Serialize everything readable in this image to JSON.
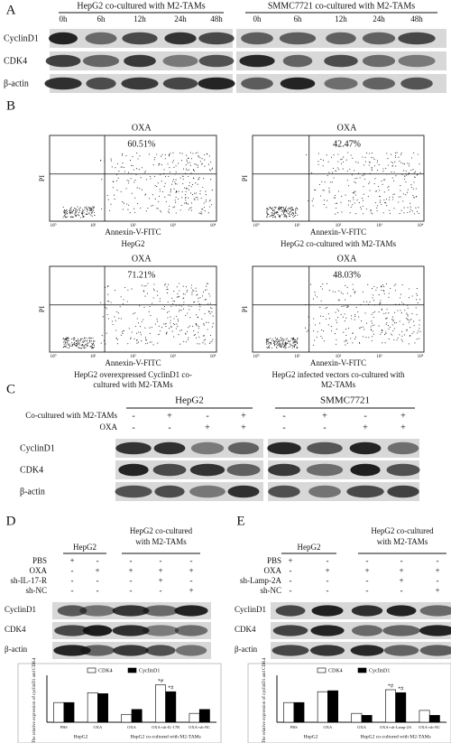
{
  "panel_a": {
    "label": "A",
    "groups": [
      {
        "title": "HepG2 co-cultured with M2-TAMs",
        "times": [
          "0h",
          "6h",
          "12h",
          "24h",
          "48h"
        ]
      },
      {
        "title": "SMMC7721 co-cultured with M2-TAMs",
        "times": [
          "0h",
          "6h",
          "12h",
          "24h",
          "48h"
        ]
      }
    ],
    "rows": [
      "CyclinD1",
      "CDK4",
      "β-actin"
    ]
  },
  "panel_b": {
    "label": "B",
    "x_label": "Annexin-V-FITC",
    "y_label": "PI",
    "ticks": [
      "10⁰",
      "10¹",
      "10²",
      "10³",
      "10⁴"
    ],
    "plots": [
      {
        "treatment": "OXA",
        "percent": "60.51%",
        "caption": [
          "HepG2"
        ]
      },
      {
        "treatment": "OXA",
        "percent": "42.47%",
        "caption": [
          "HepG2 co-cultured with M2-TAMs"
        ]
      },
      {
        "treatment": "OXA",
        "percent": "71.21%",
        "caption": [
          "HepG2 overexpressed CyclinD1 co-",
          "cultured with M2-TAMs"
        ]
      },
      {
        "treatment": "OXA",
        "percent": "48.03%",
        "caption": [
          "HepG2 infected vectors co-cultured with",
          "M2-TAMs"
        ]
      }
    ]
  },
  "panel_c": {
    "label": "C",
    "groups": [
      "HepG2",
      "SMMC7721"
    ],
    "conditions": [
      {
        "label": "Co-cultured with M2-TAMs",
        "marks": [
          "-",
          "+",
          "-",
          "+",
          "-",
          "+",
          "-",
          "+"
        ]
      },
      {
        "label": "OXA",
        "marks": [
          "-",
          "-",
          "+",
          "+",
          "-",
          "-",
          "+",
          "+"
        ]
      }
    ],
    "rows": [
      "CyclinD1",
      "CDK4",
      "β-actin"
    ]
  },
  "panel_d": {
    "label": "D",
    "groups": [
      {
        "lines": [
          "HepG2"
        ]
      },
      {
        "lines": [
          "HepG2 co-cultured",
          "with M2-TAMs"
        ]
      }
    ],
    "treatments": [
      {
        "label": "PBS",
        "marks": [
          "+",
          "-",
          "-",
          "-",
          "-"
        ]
      },
      {
        "label": "OXA",
        "marks": [
          "-",
          "+",
          "+",
          "+",
          "+"
        ]
      },
      {
        "label": "sh-IL-17-R",
        "marks": [
          "-",
          "-",
          "-",
          "+",
          "-"
        ]
      },
      {
        "label": "sh-NC",
        "marks": [
          "-",
          "-",
          "-",
          "-",
          "+"
        ]
      }
    ],
    "rows": [
      "CyclinD1",
      "CDK4",
      "β-actin"
    ]
  },
  "panel_e": {
    "label": "E",
    "groups": [
      {
        "lines": [
          "HepG2"
        ]
      },
      {
        "lines": [
          "HepG2 co-cultured",
          "with M2-TAMs"
        ]
      }
    ],
    "treatments": [
      {
        "label": "PBS",
        "marks": [
          "+",
          "-",
          "-",
          "-",
          "-"
        ]
      },
      {
        "label": "OXA",
        "marks": [
          "-",
          "+",
          "+",
          "+",
          "+"
        ]
      },
      {
        "label": "sh-Lamp-2A",
        "marks": [
          "-",
          "-",
          "-",
          "+",
          "-"
        ]
      },
      {
        "label": "sh-NC",
        "marks": [
          "-",
          "-",
          "-",
          "-",
          "+"
        ]
      }
    ],
    "rows": [
      "CyclinD1",
      "CDK4",
      "β-actin"
    ]
  },
  "chart_data": [
    {
      "type": "bar",
      "y_label": "The relative expression of cyclinD1 and CDK4",
      "categories": [
        "PBS",
        "OXA",
        "OXA",
        "OXA+sh-IL-17R",
        "OXA+sh-NC"
      ],
      "groups": [
        "HepG2",
        "HepG2 co-cultured with M2-TAMs"
      ],
      "series": [
        {
          "name": "CDK4",
          "color": "#ffffff",
          "values": [
            1.0,
            1.5,
            0.4,
            1.9,
            0.45
          ]
        },
        {
          "name": "CyclinD1",
          "color": "#000000",
          "values": [
            1.0,
            1.45,
            0.65,
            1.55,
            0.65
          ]
        }
      ],
      "ylim": [
        0,
        2.2
      ],
      "annotations": [
        "*#",
        "*#"
      ]
    },
    {
      "type": "bar",
      "y_label": "The relative expression of cyclinD1 and CDK4",
      "categories": [
        "PBS",
        "OXA",
        "OXA",
        "OXA+sh-Lamp-2A",
        "OXA+sh-NC"
      ],
      "groups": [
        "HepG2",
        "HepG2 co-cultured with M2-TAMs"
      ],
      "series": [
        {
          "name": "CDK4",
          "color": "#ffffff",
          "values": [
            1.0,
            1.55,
            0.45,
            1.65,
            0.6
          ]
        },
        {
          "name": "CyclinD1",
          "color": "#000000",
          "values": [
            1.0,
            1.6,
            0.35,
            1.5,
            0.35
          ]
        }
      ],
      "ylim": [
        0,
        2.2
      ],
      "annotations": [
        "*#",
        "*#"
      ]
    }
  ]
}
